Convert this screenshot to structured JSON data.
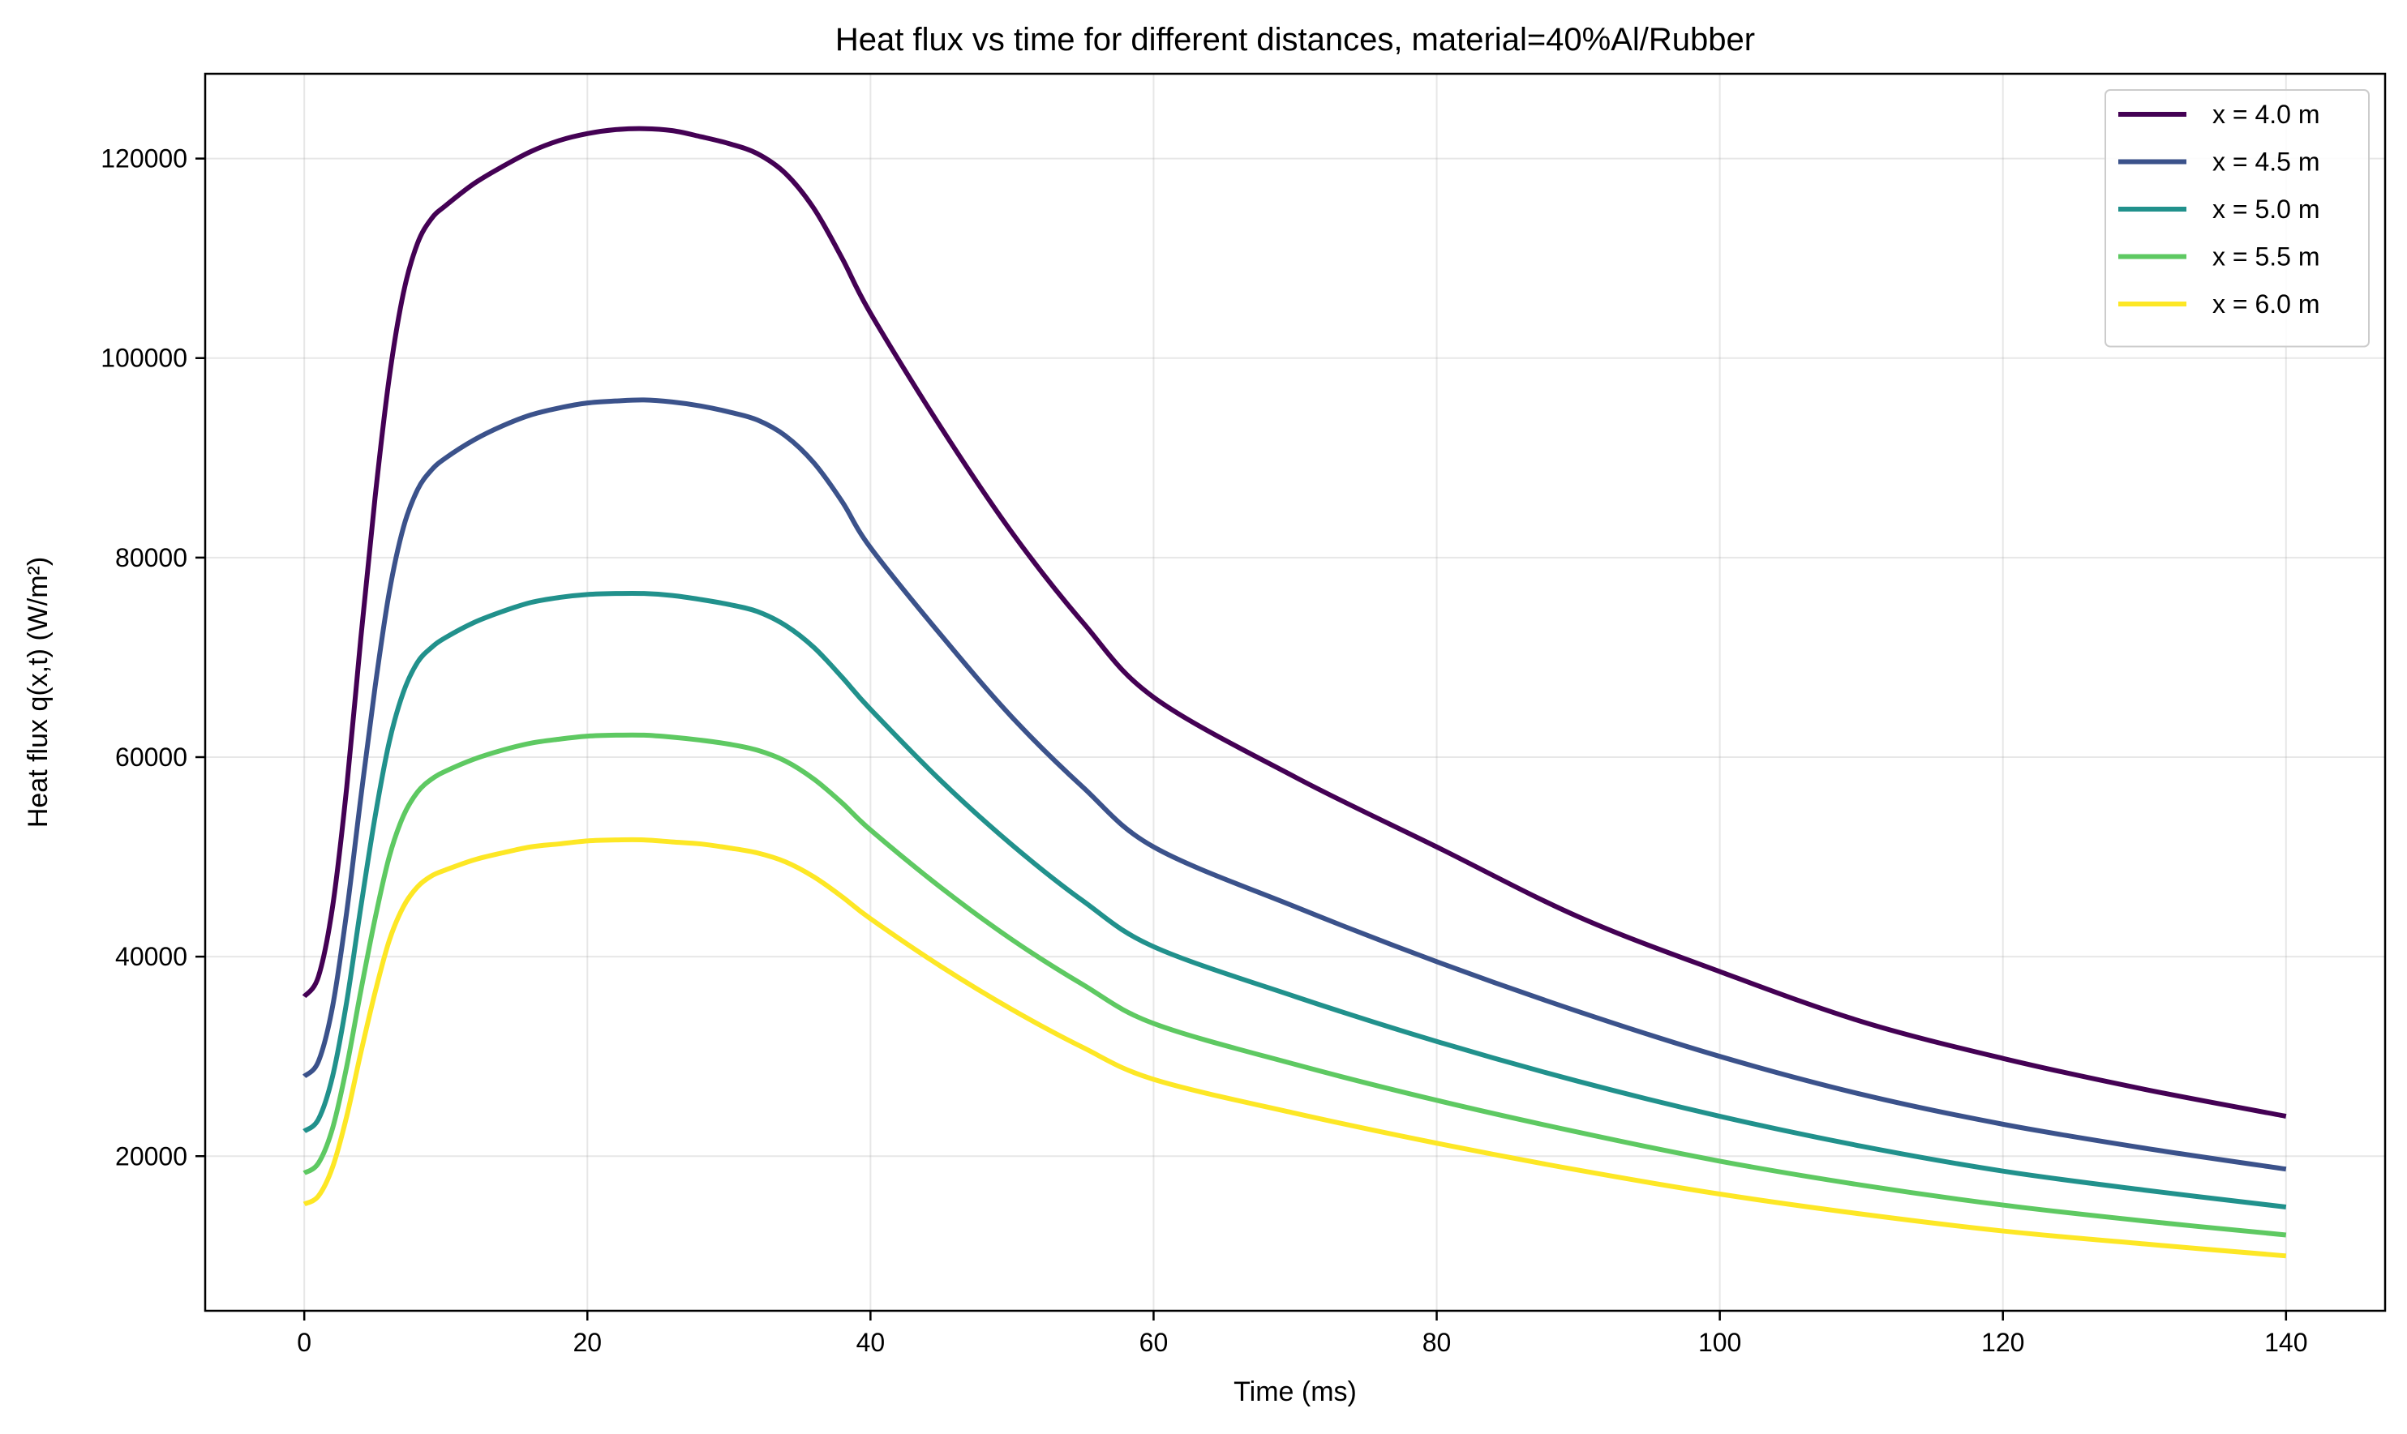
{
  "chart_data": {
    "type": "line",
    "title": "Heat flux vs time for different distances, material=40%Al/Rubber",
    "xlabel": "Time (ms)",
    "ylabel": "Heat flux q(x,t) (W/m²)",
    "xlim": [
      -7,
      147
    ],
    "ylim": [
      4500,
      128500
    ],
    "xticks": [
      0,
      20,
      40,
      60,
      80,
      100,
      120,
      140
    ],
    "yticks": [
      20000,
      40000,
      60000,
      80000,
      100000,
      120000
    ],
    "grid": true,
    "legend_position": "top-right",
    "x": [
      0,
      1,
      2,
      3,
      4,
      5,
      6,
      7,
      8,
      9,
      10,
      12,
      14,
      16,
      18,
      20,
      22,
      24,
      26,
      28,
      30,
      32,
      34,
      36,
      38,
      40,
      45,
      50,
      55,
      60,
      70,
      80,
      90,
      100,
      110,
      120,
      130,
      140
    ],
    "series": [
      {
        "name": "x = 4.0 m",
        "color": "#440154",
        "values": [
          36000,
          38000,
          45000,
          57000,
          72000,
          86000,
          98000,
          106500,
          111500,
          114000,
          115300,
          117500,
          119200,
          120700,
          121800,
          122500,
          122900,
          123000,
          122800,
          122200,
          121500,
          120500,
          118500,
          115000,
          110000,
          104500,
          93000,
          82500,
          73500,
          66000,
          58000,
          51000,
          44000,
          38500,
          33500,
          29800,
          26700,
          24000
        ]
      },
      {
        "name": "x = 4.5 m",
        "color": "#3b528b",
        "values": [
          28000,
          29500,
          35000,
          44500,
          56000,
          67000,
          76500,
          83000,
          86800,
          88800,
          90000,
          91800,
          93200,
          94300,
          95000,
          95500,
          95700,
          95800,
          95600,
          95200,
          94600,
          93800,
          92200,
          89500,
          85600,
          81000,
          72200,
          64000,
          57000,
          51000,
          45000,
          39500,
          34500,
          30000,
          26200,
          23200,
          20800,
          18700
        ]
      },
      {
        "name": "x = 5.0 m",
        "color": "#21918c",
        "values": [
          22500,
          23700,
          28000,
          35500,
          45000,
          54000,
          61500,
          66500,
          69500,
          71000,
          72000,
          73500,
          74600,
          75500,
          76000,
          76300,
          76400,
          76400,
          76200,
          75800,
          75300,
          74600,
          73200,
          71000,
          68000,
          64800,
          57600,
          51200,
          45600,
          41000,
          36000,
          31500,
          27500,
          24000,
          21000,
          18500,
          16600,
          14900
        ]
      },
      {
        "name": "x = 5.5 m",
        "color": "#5ec962",
        "values": [
          18300,
          19300,
          22800,
          29000,
          36600,
          43800,
          50000,
          54100,
          56500,
          57800,
          58600,
          59800,
          60700,
          61400,
          61800,
          62100,
          62200,
          62200,
          62000,
          61700,
          61300,
          60700,
          59600,
          57800,
          55400,
          52700,
          46900,
          41700,
          37200,
          33300,
          29200,
          25600,
          22400,
          19500,
          17100,
          15100,
          13500,
          12100
        ]
      },
      {
        "name": "x = 6.0 m",
        "color": "#fde725",
        "values": [
          15200,
          16000,
          18900,
          24000,
          30400,
          36400,
          41600,
          45000,
          47000,
          48100,
          48700,
          49700,
          50400,
          51000,
          51300,
          51600,
          51700,
          51700,
          51500,
          51300,
          50900,
          50400,
          49500,
          48000,
          46000,
          43800,
          39000,
          34700,
          30900,
          27700,
          24300,
          21300,
          18600,
          16200,
          14200,
          12500,
          11200,
          10000
        ]
      }
    ]
  }
}
